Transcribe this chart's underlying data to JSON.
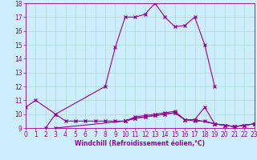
{
  "xlabel": "Windchill (Refroidissement éolien,°C)",
  "background_color": "#cceeff",
  "line_color": "#990099",
  "x": [
    0,
    1,
    2,
    3,
    4,
    5,
    6,
    7,
    8,
    9,
    10,
    11,
    12,
    13,
    14,
    15,
    16,
    17,
    18,
    19,
    20,
    21,
    22,
    23
  ],
  "series1": [
    10.5,
    11,
    null,
    10,
    null,
    null,
    null,
    null,
    12,
    14.8,
    17,
    17,
    17.2,
    18,
    17,
    16.3,
    16.4,
    17,
    15,
    12,
    null,
    null,
    null,
    null
  ],
  "series2": [
    null,
    null,
    9,
    10,
    9.5,
    9.5,
    9.5,
    9.5,
    9.5,
    9.5,
    9.5,
    9.8,
    9.9,
    10,
    10.1,
    10.2,
    9.6,
    9.5,
    9.5,
    9.3,
    9.2,
    9.1,
    9.2,
    9.3
  ],
  "series3": [
    null,
    null,
    null,
    9,
    null,
    null,
    null,
    null,
    null,
    null,
    9.5,
    9.7,
    9.8,
    9.9,
    10,
    10.1,
    9.6,
    9.6,
    10.5,
    9.3,
    9.2,
    9.1,
    9.2,
    9.3
  ],
  "series4": [
    null,
    null,
    null,
    null,
    null,
    null,
    null,
    null,
    null,
    null,
    9.5,
    9.7,
    9.8,
    9.9,
    10,
    10.1,
    9.6,
    9.6,
    null,
    9.3,
    9.2,
    9.1,
    9.2,
    9.3
  ],
  "ylim": [
    9,
    18
  ],
  "xlim": [
    0,
    23
  ],
  "yticks": [
    9,
    10,
    11,
    12,
    13,
    14,
    15,
    16,
    17,
    18
  ],
  "xticks": [
    0,
    1,
    2,
    3,
    4,
    5,
    6,
    7,
    8,
    9,
    10,
    11,
    12,
    13,
    14,
    15,
    16,
    17,
    18,
    19,
    20,
    21,
    22,
    23
  ],
  "tick_fontsize": 5.5,
  "xlabel_fontsize": 5.5,
  "grid_color": "#aaddcc",
  "marker": "x",
  "markersize": 3,
  "linewidth": 0.8
}
